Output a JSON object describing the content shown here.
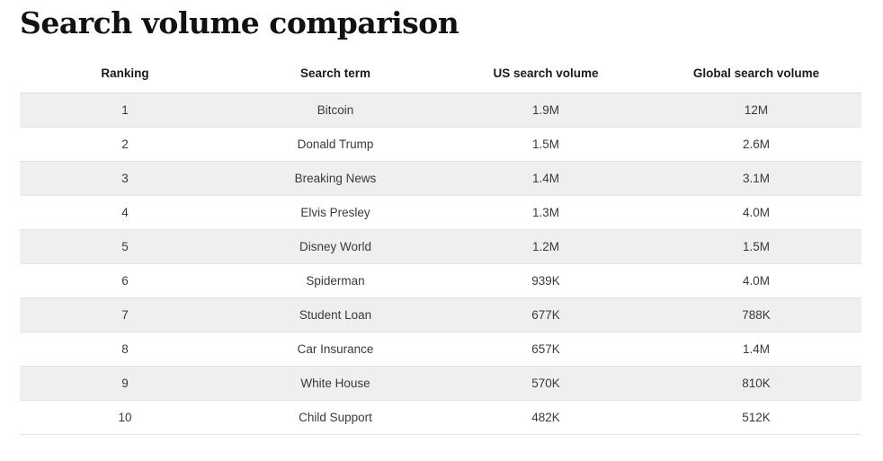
{
  "page": {
    "title": "Search volume comparison"
  },
  "table": {
    "columns": [
      "Ranking",
      "Search term",
      "US search volume",
      "Global search volume"
    ],
    "rows": [
      [
        "1",
        "Bitcoin",
        "1.9M",
        "12M"
      ],
      [
        "2",
        "Donald Trump",
        "1.5M",
        "2.6M"
      ],
      [
        "3",
        "Breaking News",
        "1.4M",
        "3.1M"
      ],
      [
        "4",
        "Elvis Presley",
        "1.3M",
        "4.0M"
      ],
      [
        "5",
        "Disney World",
        "1.2M",
        "1.5M"
      ],
      [
        "6",
        "Spiderman",
        "939K",
        "4.0M"
      ],
      [
        "7",
        "Student Loan",
        "677K",
        "788K"
      ],
      [
        "8",
        "Car Insurance",
        "657K",
        "1.4M"
      ],
      [
        "9",
        "White House",
        "570K",
        "810K"
      ],
      [
        "10",
        "Child Support",
        "482K",
        "512K"
      ]
    ]
  },
  "colors": {
    "stripe_row_background": "#efefef",
    "row_border": "#e4e4e4",
    "header_border": "#d9d9d9",
    "header_text": "#1a1a1a",
    "body_text": "#3a3a3a",
    "title_text": "#121212"
  },
  "chart_data": {
    "type": "table",
    "title": "Search volume comparison",
    "columns": [
      "Ranking",
      "Search term",
      "US search volume",
      "Global search volume"
    ],
    "rows": [
      {
        "ranking": 1,
        "search_term": "Bitcoin",
        "us_search_volume": "1.9M",
        "global_search_volume": "12M"
      },
      {
        "ranking": 2,
        "search_term": "Donald Trump",
        "us_search_volume": "1.5M",
        "global_search_volume": "2.6M"
      },
      {
        "ranking": 3,
        "search_term": "Breaking News",
        "us_search_volume": "1.4M",
        "global_search_volume": "3.1M"
      },
      {
        "ranking": 4,
        "search_term": "Elvis Presley",
        "us_search_volume": "1.3M",
        "global_search_volume": "4.0M"
      },
      {
        "ranking": 5,
        "search_term": "Disney World",
        "us_search_volume": "1.2M",
        "global_search_volume": "1.5M"
      },
      {
        "ranking": 6,
        "search_term": "Spiderman",
        "us_search_volume": "939K",
        "global_search_volume": "4.0M"
      },
      {
        "ranking": 7,
        "search_term": "Student Loan",
        "us_search_volume": "677K",
        "global_search_volume": "788K"
      },
      {
        "ranking": 8,
        "search_term": "Car Insurance",
        "us_search_volume": "657K",
        "global_search_volume": "1.4M"
      },
      {
        "ranking": 9,
        "search_term": "White House",
        "us_search_volume": "570K",
        "global_search_volume": "810K"
      },
      {
        "ranking": 10,
        "search_term": "Child Support",
        "us_search_volume": "482K",
        "global_search_volume": "512K"
      }
    ],
    "layout": {
      "zebra_striping": true,
      "text_alignment": "center",
      "grid": "horizontal-only",
      "legend": "none"
    }
  }
}
